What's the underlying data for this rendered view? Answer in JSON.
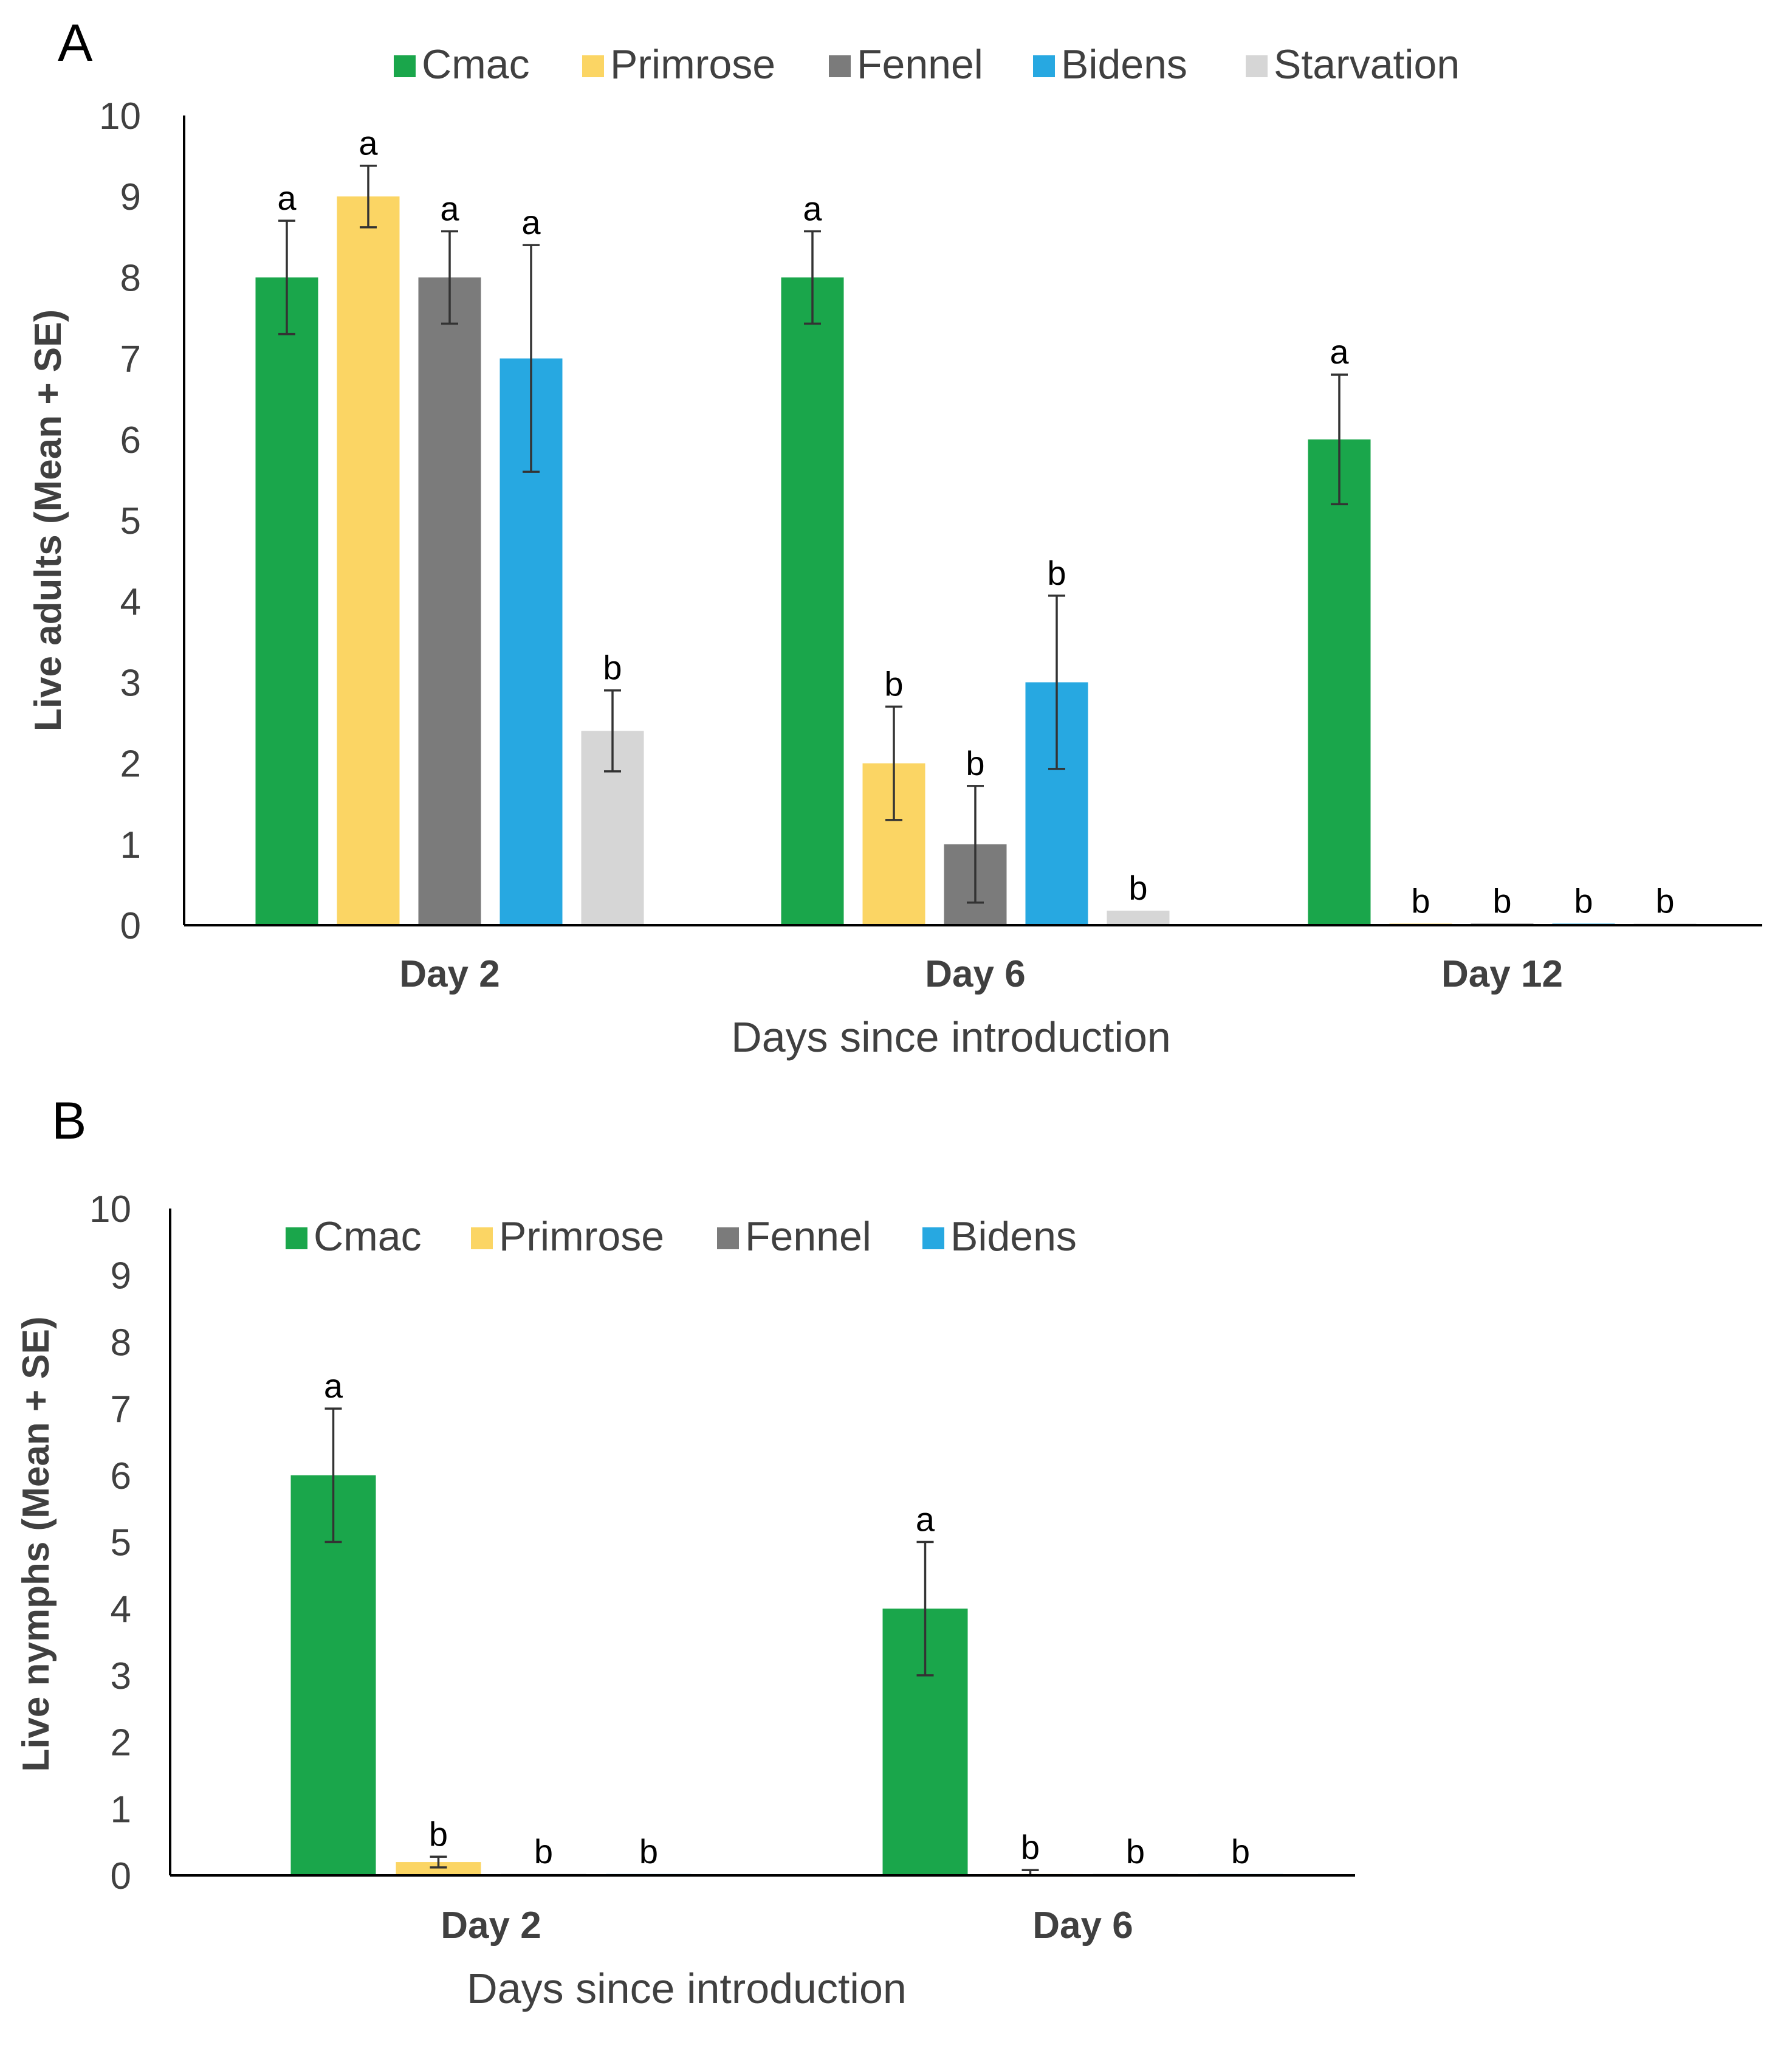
{
  "chart_data": [
    {
      "panel_label": "A",
      "type": "bar",
      "xlabel": "Days since introduction",
      "ylabel": "Live adults (Mean + SE)",
      "ylim": [
        0,
        10
      ],
      "yticks": [
        "0",
        "1",
        "2",
        "3",
        "4",
        "5",
        "6",
        "7",
        "8",
        "9",
        "10"
      ],
      "categories": [
        "Day 2",
        "Day 6",
        "Day 12"
      ],
      "legend_position": "top",
      "series": [
        {
          "name": "Cmac",
          "color": "#1aa64b",
          "values": [
            8,
            8,
            6
          ],
          "errors": [
            0.7,
            0.57,
            0.8
          ],
          "letters": [
            "a",
            "a",
            "a"
          ]
        },
        {
          "name": "Primrose",
          "color": "#fbd564",
          "values": [
            9,
            2,
            0.02
          ],
          "errors": [
            0.38,
            0.7,
            0
          ],
          "letters": [
            "a",
            "b",
            "b"
          ]
        },
        {
          "name": "Fennel",
          "color": "#7b7b7b",
          "values": [
            8,
            1,
            0.02
          ],
          "errors": [
            0.57,
            0.72,
            0
          ],
          "letters": [
            "a",
            "b",
            "b"
          ]
        },
        {
          "name": "Bidens",
          "color": "#27a8e1",
          "values": [
            7,
            3,
            0.02
          ],
          "errors": [
            1.4,
            1.07,
            0
          ],
          "letters": [
            "a",
            "b",
            "b"
          ]
        },
        {
          "name": "Starvation",
          "color": "#d6d6d6",
          "values": [
            2.4,
            0.18,
            0.02
          ],
          "errors": [
            0.5,
            0,
            0
          ],
          "letters": [
            "b",
            "b",
            "b"
          ]
        }
      ]
    },
    {
      "panel_label": "B",
      "type": "bar",
      "xlabel": "Days since introduction",
      "ylabel": "Live nymphs (Mean + SE)",
      "ylim": [
        0,
        10
      ],
      "yticks": [
        "0",
        "1",
        "2",
        "3",
        "4",
        "5",
        "6",
        "7",
        "8",
        "9",
        "10"
      ],
      "categories": [
        "Day 2",
        "Day 6"
      ],
      "legend_position": "top",
      "series": [
        {
          "name": "Cmac",
          "color": "#1aa64b",
          "values": [
            6,
            4
          ],
          "errors": [
            1.0,
            1.0
          ],
          "letters": [
            "a",
            "a"
          ]
        },
        {
          "name": "Primrose",
          "color": "#fbd564",
          "values": [
            0.2,
            0.02
          ],
          "errors": [
            0.08,
            0.06
          ],
          "letters": [
            "b",
            "b"
          ]
        },
        {
          "name": "Fennel",
          "color": "#7b7b7b",
          "values": [
            0.02,
            0.02
          ],
          "errors": [
            0,
            0
          ],
          "letters": [
            "b",
            "b"
          ]
        },
        {
          "name": "Bidens",
          "color": "#27a8e1",
          "values": [
            0.02,
            0.02
          ],
          "errors": [
            0,
            0
          ],
          "letters": [
            "b",
            "b"
          ]
        }
      ]
    }
  ]
}
